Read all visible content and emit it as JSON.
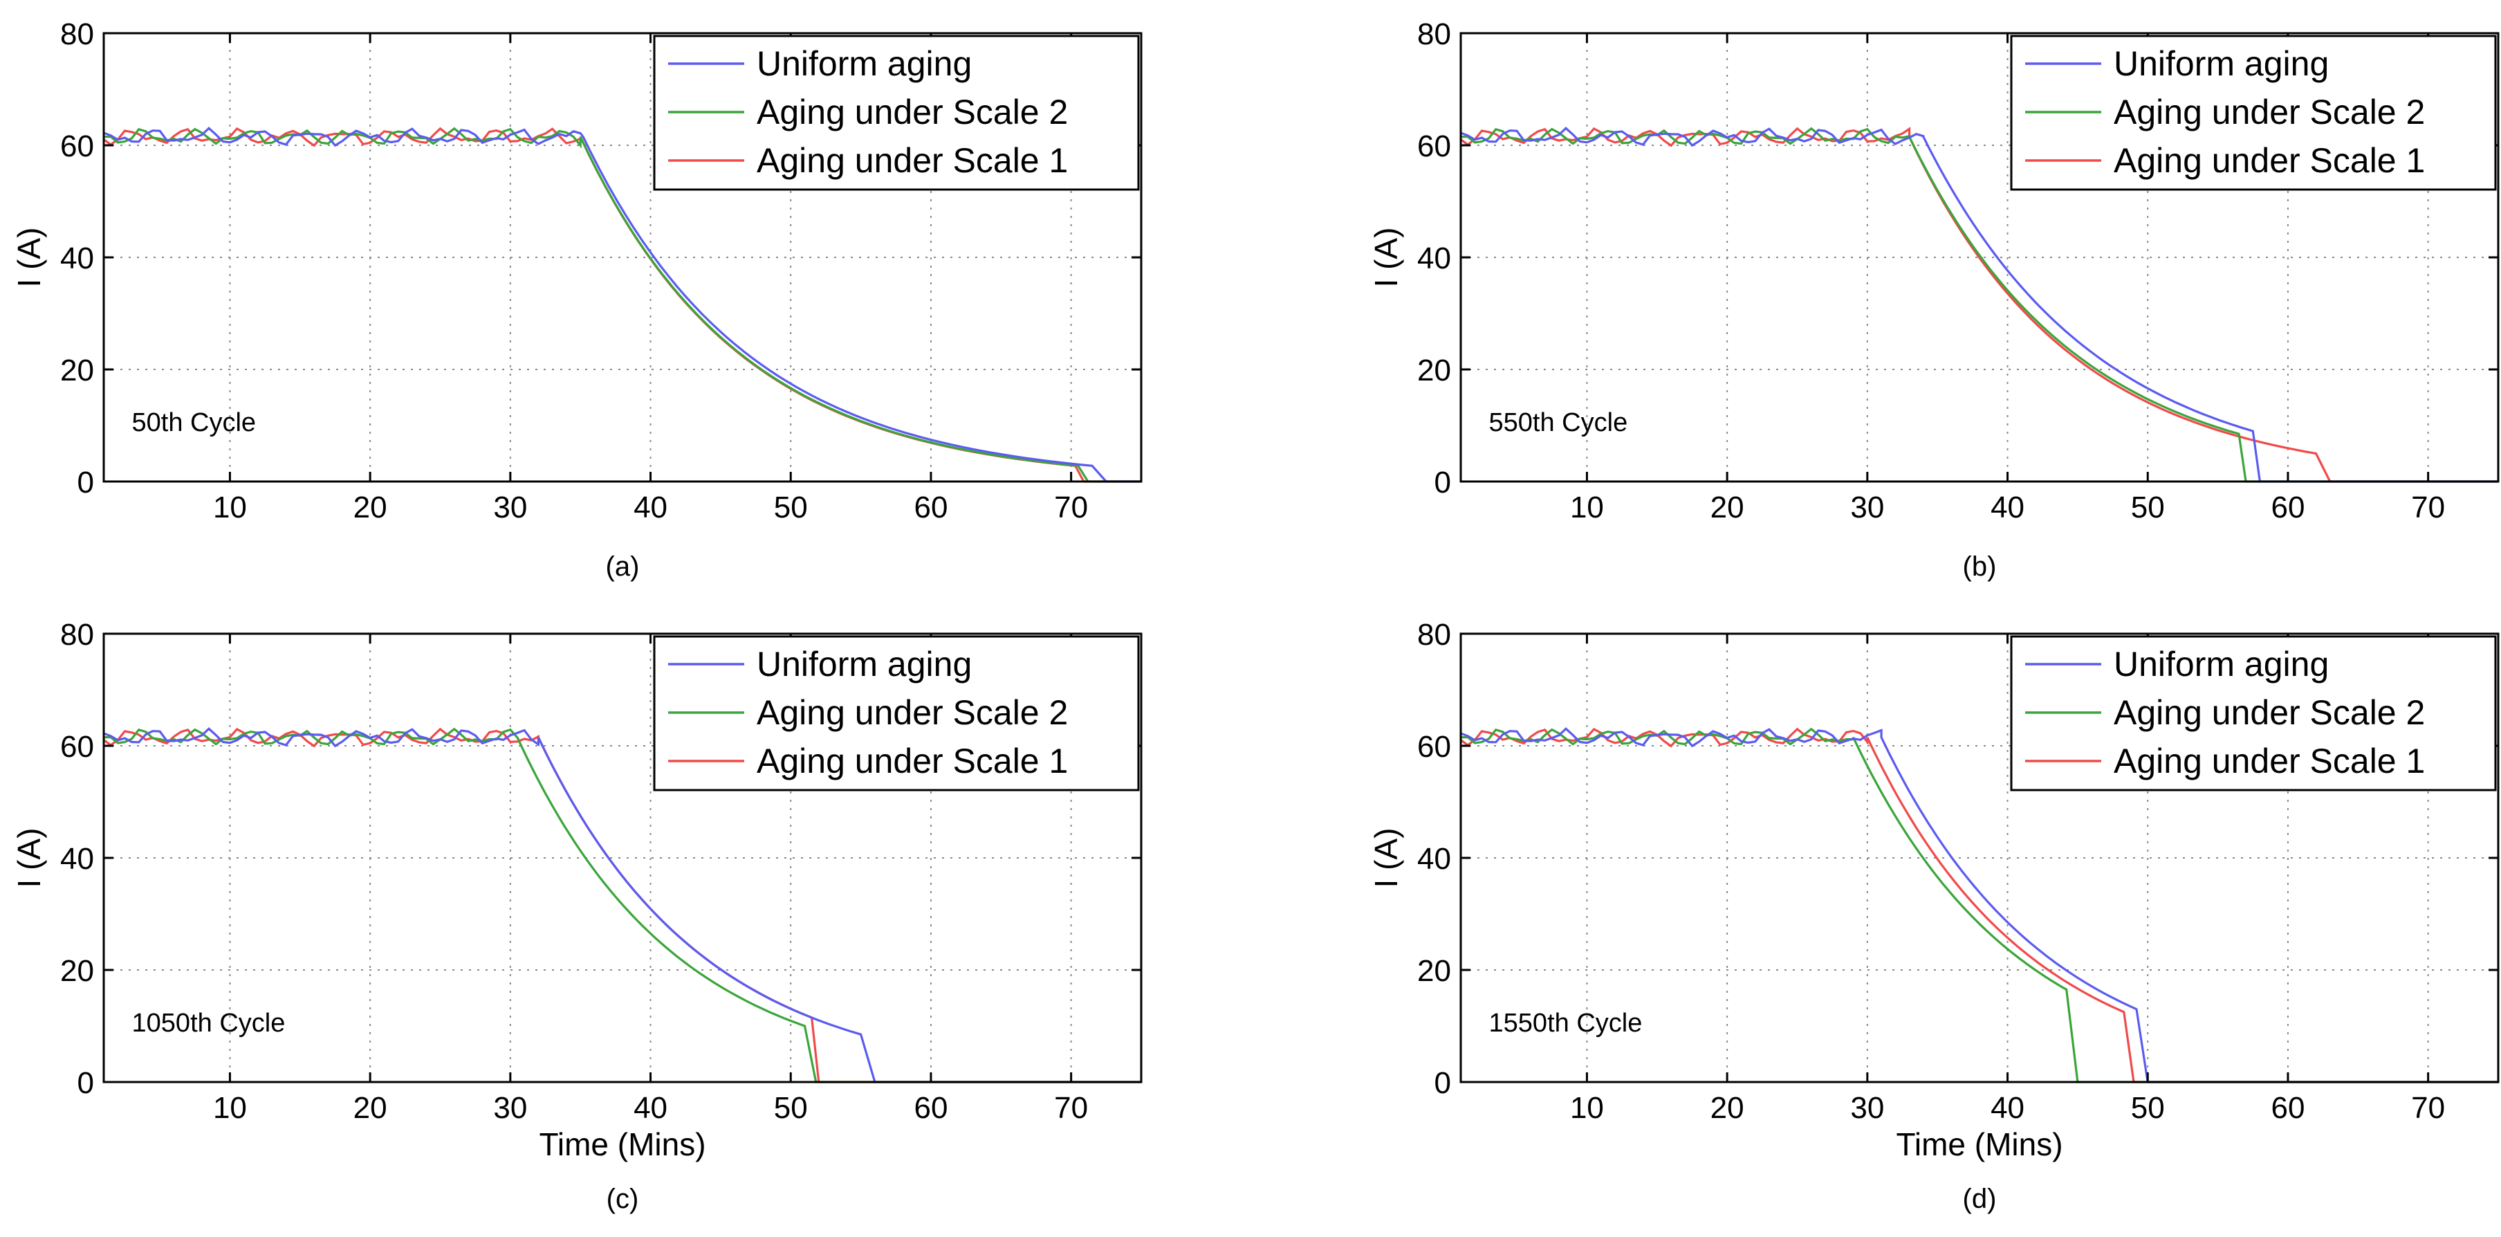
{
  "figure": {
    "description_free": true
  },
  "series_meta": [
    {
      "key": "uniform",
      "name": "Uniform aging",
      "color": "#5b5bf0"
    },
    {
      "key": "scale2",
      "name": "Aging under Scale 2",
      "color": "#3aa53a"
    },
    {
      "key": "scale1",
      "name": "Aging under Scale 1",
      "color": "#f04a4a"
    }
  ],
  "chart_data": [
    {
      "type": "line",
      "panel_label": "(a)",
      "annotation": "50th Cycle",
      "xlabel": "",
      "ylabel": "I (A)",
      "xlim": [
        1,
        75
      ],
      "ylim": [
        0,
        80
      ],
      "xticks": [
        10,
        20,
        30,
        40,
        50,
        60,
        70
      ],
      "yticks": [
        0,
        20,
        40,
        60,
        80
      ],
      "legend_order": [
        "uniform",
        "scale2",
        "scale1"
      ],
      "legend_position": "top-right",
      "series": [
        {
          "key": "uniform",
          "name": "Uniform aging",
          "phase": 0.0,
          "cv_start": 35.2,
          "cv_end": 71.5,
          "end_value": 2.8,
          "drop_end": 72.5
        },
        {
          "key": "scale2",
          "name": "Aging under Scale 2",
          "phase": 1.3,
          "cv_start": 35.0,
          "cv_end": 70.5,
          "end_value": 2.8,
          "drop_end": 71.2
        },
        {
          "key": "scale1",
          "name": "Aging under Scale 1",
          "phase": 2.6,
          "cv_start": 35.0,
          "cv_end": 70.3,
          "end_value": 2.8,
          "drop_end": 70.9
        }
      ]
    },
    {
      "type": "line",
      "panel_label": "(b)",
      "annotation": "550th Cycle",
      "xlabel": "",
      "ylabel": "I (A)",
      "xlim": [
        1,
        75
      ],
      "ylim": [
        0,
        80
      ],
      "xticks": [
        10,
        20,
        30,
        40,
        50,
        60,
        70
      ],
      "yticks": [
        0,
        20,
        40,
        60,
        80
      ],
      "legend_order": [
        "uniform",
        "scale2",
        "scale1"
      ],
      "legend_position": "top-right",
      "series": [
        {
          "key": "uniform",
          "name": "Uniform aging",
          "phase": 0.0,
          "cv_start": 34.0,
          "cv_end": 57.5,
          "end_value": 9.0,
          "drop_end": 58.0
        },
        {
          "key": "scale2",
          "name": "Aging under Scale 2",
          "phase": 1.3,
          "cv_start": 33.0,
          "cv_end": 56.5,
          "end_value": 8.5,
          "drop_end": 57.0
        },
        {
          "key": "scale1",
          "name": "Aging under Scale 1",
          "phase": 2.6,
          "cv_start": 33.0,
          "cv_end": 62.0,
          "end_value": 5.0,
          "drop_end": 63.0
        }
      ]
    },
    {
      "type": "line",
      "panel_label": "(c)",
      "annotation": "1050th Cycle",
      "xlabel": "Time (Mins)",
      "ylabel": "I (A)",
      "xlim": [
        1,
        75
      ],
      "ylim": [
        0,
        80
      ],
      "xticks": [
        10,
        20,
        30,
        40,
        50,
        60,
        70
      ],
      "yticks": [
        0,
        20,
        40,
        60,
        80
      ],
      "legend_order": [
        "uniform",
        "scale2",
        "scale1"
      ],
      "legend_position": "top-right",
      "series": [
        {
          "key": "uniform",
          "name": "Uniform aging",
          "phase": 0.0,
          "cv_start": 32.0,
          "cv_end": 55.0,
          "end_value": 8.5,
          "drop_end": 56.0
        },
        {
          "key": "scale2",
          "name": "Aging under Scale 2",
          "phase": 1.3,
          "cv_start": 30.5,
          "cv_end": 51.0,
          "end_value": 10.0,
          "drop_end": 51.8
        },
        {
          "key": "scale1",
          "name": "Aging under Scale 1",
          "phase": 2.6,
          "cv_start": 32.0,
          "cv_end": 51.5,
          "end_value": 11.5,
          "drop_end": 52.0
        }
      ]
    },
    {
      "type": "line",
      "panel_label": "(d)",
      "annotation": "1550th Cycle",
      "xlabel": "Time (Mins)",
      "ylabel": "I (A)",
      "xlim": [
        1,
        75
      ],
      "ylim": [
        0,
        80
      ],
      "xticks": [
        10,
        20,
        30,
        40,
        50,
        60,
        70
      ],
      "yticks": [
        0,
        20,
        40,
        60,
        80
      ],
      "legend_order": [
        "uniform",
        "scale2",
        "scale1"
      ],
      "legend_position": "top-right",
      "series": [
        {
          "key": "uniform",
          "name": "Uniform aging",
          "phase": 0.0,
          "cv_start": 31.0,
          "cv_end": 49.2,
          "end_value": 13.0,
          "drop_end": 50.0
        },
        {
          "key": "scale2",
          "name": "Aging under Scale 2",
          "phase": 1.3,
          "cv_start": 29.0,
          "cv_end": 44.2,
          "end_value": 16.5,
          "drop_end": 45.0
        },
        {
          "key": "scale1",
          "name": "Aging under Scale 1",
          "phase": 2.6,
          "cv_start": 30.0,
          "cv_end": 48.3,
          "end_value": 12.5,
          "drop_end": 49.0
        }
      ]
    }
  ]
}
